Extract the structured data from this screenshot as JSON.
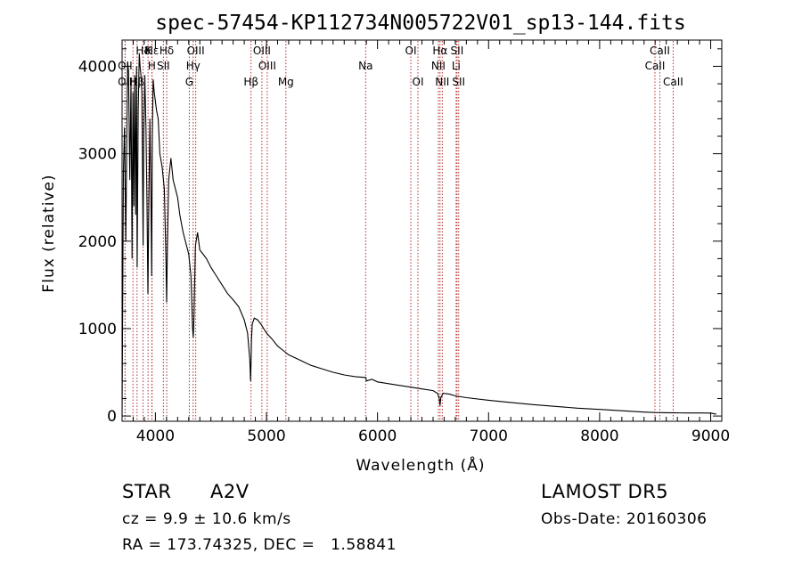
{
  "chart_data": {
    "type": "line",
    "title": "spec-57454-KP112734N005722V01_sp13-144.fits",
    "xlabel": "Wavelength (Å)",
    "ylabel": "Flux (relative)",
    "xlim": [
      3700,
      9100
    ],
    "ylim": [
      -60,
      4300
    ],
    "x_ticks": [
      4000,
      5000,
      6000,
      7000,
      8000,
      9000
    ],
    "y_ticks": [
      0,
      1000,
      2000,
      3000,
      4000
    ],
    "grid": false,
    "series": [
      {
        "color": "#000000",
        "x": [
          3700,
          3712,
          3722,
          3734,
          3745,
          3750,
          3758,
          3770,
          3780,
          3790,
          3798,
          3806,
          3814,
          3822,
          3830,
          3836,
          3845,
          3855,
          3862,
          3870,
          3878,
          3885,
          3889,
          3895,
          3905,
          3915,
          3925,
          3933,
          3940,
          3950,
          3960,
          3966,
          3972,
          3980,
          3990,
          4000,
          4010,
          4025,
          4040,
          4060,
          4080,
          4095,
          4101,
          4108,
          4120,
          4140,
          4160,
          4180,
          4200,
          4220,
          4250,
          4280,
          4300,
          4320,
          4335,
          4341,
          4347,
          4360,
          4380,
          4400,
          4430,
          4460,
          4500,
          4550,
          4600,
          4650,
          4700,
          4750,
          4800,
          4830,
          4850,
          4857,
          4861,
          4865,
          4872,
          4890,
          4920,
          4950,
          5000,
          5050,
          5100,
          5150,
          5200,
          5300,
          5400,
          5500,
          5600,
          5700,
          5800,
          5895,
          5900,
          5950,
          6000,
          6100,
          6200,
          6300,
          6400,
          6500,
          6540,
          6555,
          6563,
          6570,
          6590,
          6650,
          6700,
          6800,
          7000,
          7200,
          7400,
          7600,
          7800,
          8000,
          8200,
          8400,
          8500,
          8600,
          8700,
          8800,
          8900,
          9000,
          9050
        ],
        "values": [
          0,
          2800,
          3300,
          2000,
          3500,
          4050,
          3950,
          2700,
          3850,
          1800,
          3700,
          2400,
          3900,
          2300,
          4000,
          1700,
          3500,
          4150,
          4000,
          3900,
          3700,
          2600,
          1950,
          3200,
          3900,
          3300,
          2400,
          1400,
          2300,
          3400,
          2500,
          1600,
          3200,
          3850,
          3700,
          3600,
          3500,
          3400,
          3000,
          2850,
          2600,
          1800,
          1300,
          1900,
          2700,
          2950,
          2700,
          2600,
          2500,
          2300,
          2100,
          1950,
          1850,
          1600,
          1000,
          900,
          1100,
          1950,
          2100,
          1900,
          1850,
          1800,
          1700,
          1600,
          1500,
          1400,
          1330,
          1250,
          1100,
          950,
          650,
          400,
          600,
          870,
          1050,
          1120,
          1100,
          1050,
          950,
          880,
          800,
          750,
          700,
          640,
          580,
          540,
          500,
          470,
          450,
          440,
          400,
          420,
          390,
          370,
          350,
          330,
          310,
          290,
          260,
          210,
          120,
          210,
          260,
          250,
          230,
          210,
          180,
          155,
          130,
          110,
          90,
          75,
          60,
          45,
          40,
          38,
          36,
          35,
          35,
          34,
          20
        ]
      }
    ],
    "lines": [
      {
        "label": "Hδ",
        "x": 3889,
        "row": 0
      },
      {
        "label": "Hε",
        "x": 3970,
        "row": 0
      },
      {
        "label": "K",
        "x": 3934,
        "row": 0
      },
      {
        "label": "Hδ",
        "x": 4102,
        "row": 0
      },
      {
        "label": "OIII",
        "x": 4363,
        "row": 0
      },
      {
        "label": "OIII",
        "x": 4959,
        "row": 0
      },
      {
        "label": "OI",
        "x": 6300,
        "row": 0
      },
      {
        "label": "Hα",
        "x": 6563,
        "row": 0
      },
      {
        "label": "SII",
        "x": 6716,
        "row": 0
      },
      {
        "label": "CaII",
        "x": 8542,
        "row": 0
      },
      {
        "label": "OII",
        "x": 3727,
        "row": 1
      },
      {
        "label": "H",
        "x": 3968,
        "row": 1
      },
      {
        "label": "SII",
        "x": 4072,
        "row": 1
      },
      {
        "label": "Hγ",
        "x": 4340,
        "row": 1
      },
      {
        "label": "OIII",
        "x": 5007,
        "row": 1
      },
      {
        "label": "Na",
        "x": 5893,
        "row": 1
      },
      {
        "label": "NII",
        "x": 6548,
        "row": 1
      },
      {
        "label": "Li",
        "x": 6708,
        "row": 1
      },
      {
        "label": "CaII",
        "x": 8498,
        "row": 1
      },
      {
        "label": "OII",
        "x": 3727,
        "row": 2
      },
      {
        "label": "Hβ",
        "x": 3835,
        "row": 2
      },
      {
        "label": "H",
        "x": 3798,
        "row": 2
      },
      {
        "label": "G",
        "x": 4305,
        "row": 2
      },
      {
        "label": "Hβ",
        "x": 4861,
        "row": 2
      },
      {
        "label": "Mg",
        "x": 5175,
        "row": 2
      },
      {
        "label": "OI",
        "x": 6364,
        "row": 2
      },
      {
        "label": "NII",
        "x": 6583,
        "row": 2
      },
      {
        "label": "SII",
        "x": 6731,
        "row": 2
      },
      {
        "label": "CaII",
        "x": 8662,
        "row": 2
      }
    ]
  },
  "info": {
    "class": "STAR",
    "subclass": "A2V",
    "survey": "LAMOST DR5",
    "redshift": "cz = 9.9 ± 10.6 km/s",
    "obs_date": "Obs-Date: 20160306",
    "coords": "RA = 173.74325, DEC =   1.58841"
  },
  "colors": {
    "background": "#ffffff",
    "spectrum": "#000000",
    "line_marker": "#b03030"
  }
}
